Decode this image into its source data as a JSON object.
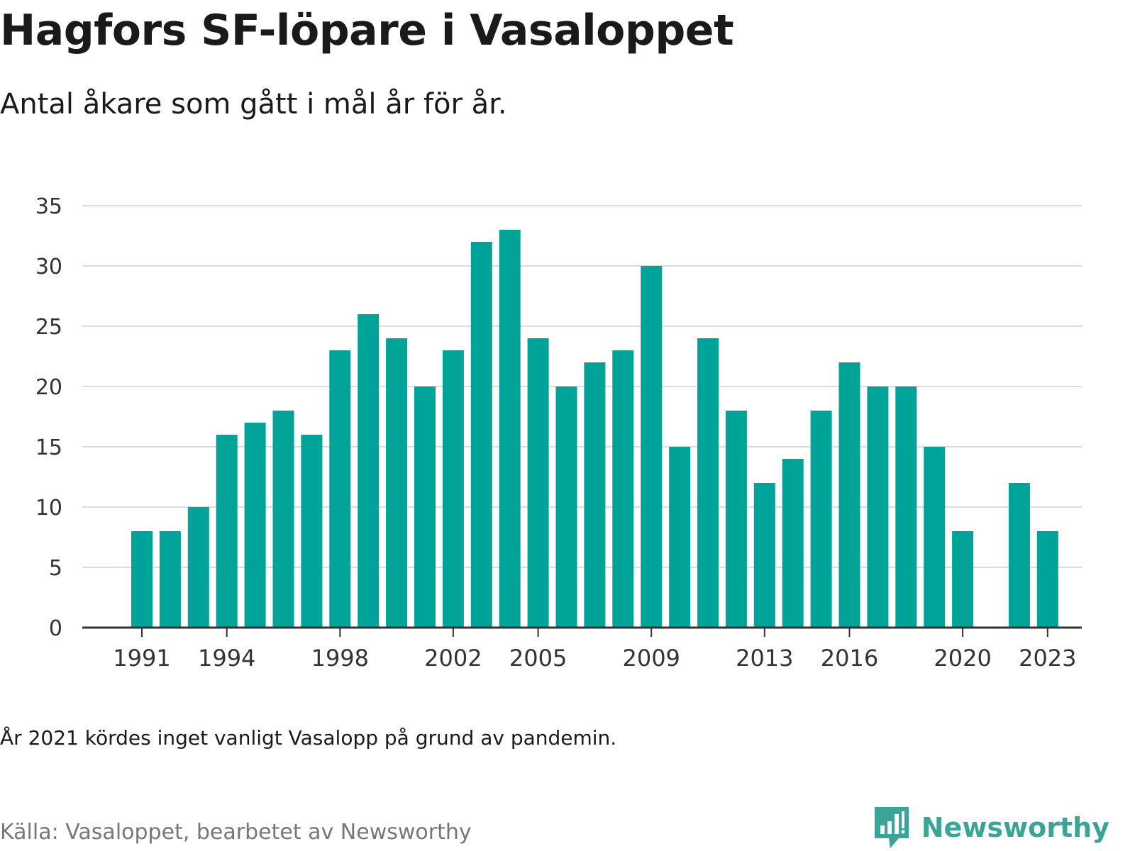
{
  "title": "Hagfors SF-löpare i Vasaloppet",
  "subtitle": "Antal åkare som gått i mål år för år.",
  "note": "År 2021 kördes inget vanligt Vasalopp på grund av pandemin.",
  "source": "Källa: Vasaloppet, bearbetet av Newsworthy",
  "brand": {
    "name": "Newsworthy",
    "color": "#3aa596",
    "icon": "bar-chart-bubble-icon"
  },
  "chart_data": {
    "type": "bar",
    "bar_color": "#00a398",
    "years": [
      1991,
      1992,
      1993,
      1994,
      1995,
      1996,
      1997,
      1998,
      1999,
      2000,
      2001,
      2002,
      2003,
      2004,
      2005,
      2006,
      2007,
      2008,
      2009,
      2010,
      2011,
      2012,
      2013,
      2014,
      2015,
      2016,
      2017,
      2018,
      2019,
      2020,
      2021,
      2022,
      2023
    ],
    "values": [
      8,
      8,
      10,
      16,
      17,
      18,
      16,
      23,
      26,
      24,
      20,
      23,
      32,
      33,
      24,
      20,
      22,
      23,
      30,
      15,
      24,
      18,
      12,
      14,
      18,
      22,
      20,
      20,
      15,
      8,
      null,
      12,
      8
    ],
    "x_tick_labels": [
      "1991",
      "1994",
      "1998",
      "2002",
      "2005",
      "2009",
      "2013",
      "2016",
      "2020",
      "2023"
    ],
    "y_ticks": [
      0,
      5,
      10,
      15,
      20,
      25,
      30,
      35
    ],
    "ylim": [
      0,
      35
    ],
    "grid": true
  }
}
